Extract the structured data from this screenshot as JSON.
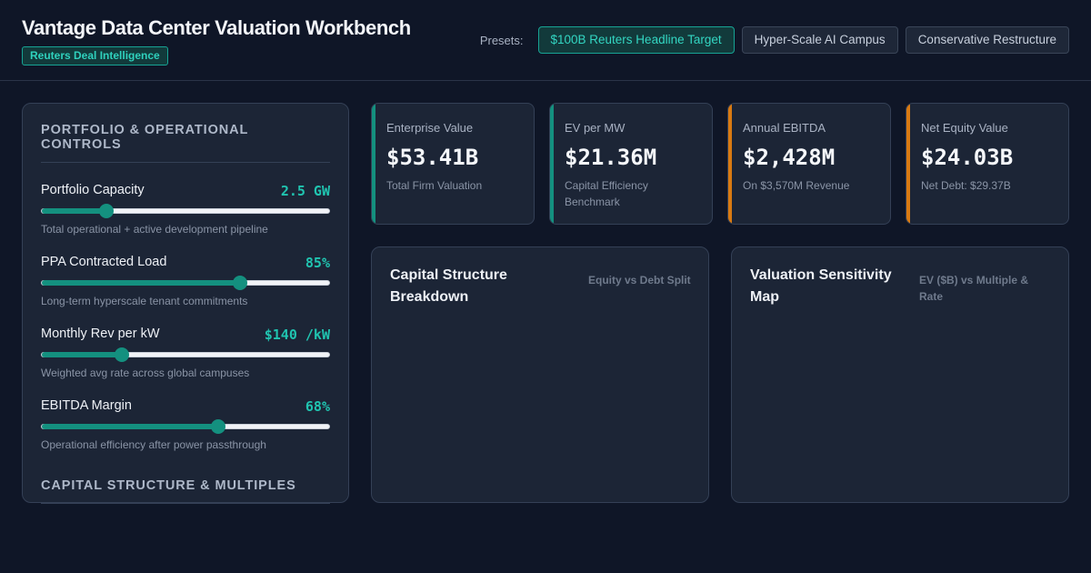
{
  "header": {
    "title": "Vantage Data Center Valuation Workbench",
    "badge": "Reuters Deal Intelligence",
    "presets_label": "Presets:",
    "presets": [
      {
        "label": "$100B Reuters Headline Target",
        "active": true
      },
      {
        "label": "Hyper-Scale AI Campus",
        "active": false
      },
      {
        "label": "Conservative Restructure",
        "active": false
      }
    ]
  },
  "controls": {
    "section_title": "Portfolio & Operational Controls",
    "sliders": [
      {
        "label": "Portfolio Capacity",
        "value": "2.5 GW",
        "description": "Total operational + active development pipeline",
        "fraction": 0.225
      },
      {
        "label": "PPA Contracted Load",
        "value": "85%",
        "description": "Long-term hyperscale tenant commitments",
        "fraction": 0.69
      },
      {
        "label": "Monthly Rev per kW",
        "value": "$140 /kW",
        "description": "Weighted avg rate across global campuses",
        "fraction": 0.28
      },
      {
        "label": "EBITDA Margin",
        "value": "68%",
        "description": "Operational efficiency after power passthrough",
        "fraction": 0.615
      }
    ],
    "section2_title": "Capital Structure & Multiples"
  },
  "kpis": [
    {
      "label": "Enterprise Value",
      "value": "$53.41B",
      "sub": "Total Firm Valuation",
      "accent": "#14907f"
    },
    {
      "label": "EV per MW",
      "value": "$21.36M",
      "sub": "Capital Efficiency Benchmark",
      "accent": "#14907f"
    },
    {
      "label": "Annual EBITDA",
      "value": "$2,428M",
      "sub": "On $3,570M Revenue",
      "accent": "#d97a12"
    },
    {
      "label": "Net Equity Value",
      "value": "$24.03B",
      "sub": "Net Debt: $29.37B",
      "accent": "#d97a12"
    }
  ],
  "panels": [
    {
      "title": "Capital Structure Breakdown",
      "subtitle": "Equity vs Debt Split"
    },
    {
      "title": "Valuation Sensitivity Map",
      "subtitle": "EV ($B) vs Multiple & Rate"
    }
  ]
}
